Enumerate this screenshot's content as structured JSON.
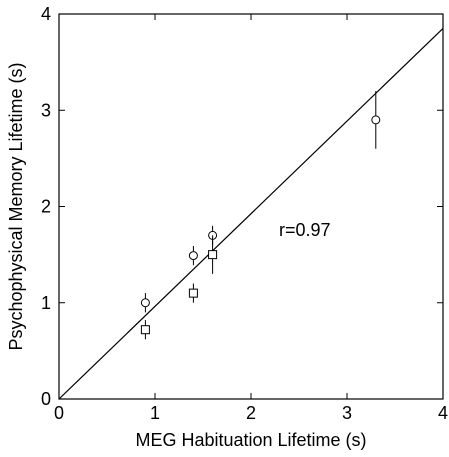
{
  "chart_data": {
    "type": "scatter",
    "title": "",
    "xlabel": "MEG Habituation Lifetime (s)",
    "ylabel": "Psychophysical Memory Lifetime (s)",
    "xlim": [
      0,
      4
    ],
    "ylim": [
      0,
      4
    ],
    "xticks": [
      0,
      1,
      2,
      3,
      4
    ],
    "yticks": [
      0,
      1,
      2,
      3,
      4
    ],
    "grid": false,
    "annotation": "r=0.97",
    "fit_line": {
      "x": [
        0,
        4
      ],
      "y": [
        0,
        3.85
      ]
    },
    "series": [
      {
        "marker": "circle",
        "points": [
          {
            "x": 0.9,
            "y": 1.0,
            "err": 0.1
          },
          {
            "x": 1.4,
            "y": 1.49,
            "err": 0.1
          },
          {
            "x": 1.6,
            "y": 1.7,
            "err": 0.1
          },
          {
            "x": 3.3,
            "y": 2.9,
            "err": 0.3
          }
        ]
      },
      {
        "marker": "square",
        "points": [
          {
            "x": 0.9,
            "y": 0.72,
            "err": 0.1
          },
          {
            "x": 1.4,
            "y": 1.1,
            "err": 0.1
          },
          {
            "x": 1.6,
            "y": 1.5,
            "err": 0.2
          }
        ]
      }
    ]
  }
}
